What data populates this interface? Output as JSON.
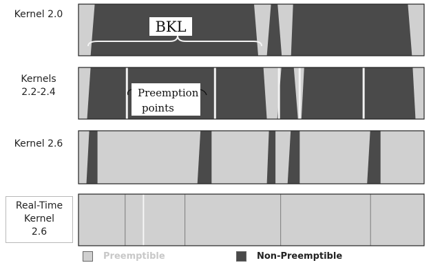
{
  "colors": {
    "preemptible": "#d0d0d0",
    "non_preemptible": "#4a4a4a",
    "outline": "#222222",
    "separator": "#f2f2f2"
  },
  "rows": [
    {
      "label": "Kernel 2.0",
      "separators": [],
      "segments": [
        {
          "type": "preemptible",
          "start": 0.0,
          "end": 0.035
        },
        {
          "type": "non",
          "start": 0.035,
          "end": 0.52,
          "taperL": 0.012,
          "taperR": 0.012
        },
        {
          "type": "preemptible",
          "start": 0.52,
          "end": 0.545
        },
        {
          "type": "non",
          "start": 0.545,
          "end": 0.588,
          "taperL": 0.012,
          "taperR": 0.012
        },
        {
          "type": "preemptible",
          "start": 0.588,
          "end": 0.615
        },
        {
          "type": "non",
          "start": 0.615,
          "end": 0.965,
          "taperL": 0.006,
          "taperR": 0.012
        },
        {
          "type": "preemptible",
          "start": 0.965,
          "end": 1.0
        }
      ]
    },
    {
      "label": "Kernels\n2.2-2.4",
      "separators": [
        0.14,
        0.395,
        0.58,
        0.64,
        0.825
      ],
      "segments": [
        {
          "type": "preemptible",
          "start": 0.0,
          "end": 0.025
        },
        {
          "type": "non",
          "start": 0.025,
          "end": 0.545,
          "taperL": 0.01,
          "taperR": 0.01
        },
        {
          "type": "preemptible",
          "start": 0.545,
          "end": 0.575
        },
        {
          "type": "non",
          "start": 0.575,
          "end": 0.635,
          "taperL": 0.012,
          "taperR": 0.012
        },
        {
          "type": "preemptible",
          "start": 0.635,
          "end": 0.645
        },
        {
          "type": "non",
          "start": 0.645,
          "end": 0.975,
          "taperL": 0.008,
          "taperR": 0.008
        },
        {
          "type": "preemptible",
          "start": 0.975,
          "end": 1.0
        }
      ]
    },
    {
      "label": "Kernel 2.6",
      "separators": [],
      "segments": [
        {
          "type": "preemptible",
          "start": 0.0,
          "end": 1.0
        },
        {
          "type": "non",
          "start": 0.023,
          "end": 0.055,
          "taperL": 0.008,
          "taperR": 0.0
        },
        {
          "type": "non",
          "start": 0.344,
          "end": 0.385,
          "taperL": 0.009,
          "taperR": 0.0
        },
        {
          "type": "non",
          "start": 0.545,
          "end": 0.57,
          "taperL": 0.006,
          "taperR": 0.0
        },
        {
          "type": "non",
          "start": 0.605,
          "end": 0.64,
          "taperL": 0.009,
          "taperR": 0.0
        },
        {
          "type": "non",
          "start": 0.835,
          "end": 0.874,
          "taperL": 0.009,
          "taperR": 0.0
        }
      ]
    },
    {
      "label": "Real-Time\nKernel\n2.6",
      "separators_dark": [
        0.135,
        0.308,
        0.585,
        0.845
      ],
      "separators_light": [
        0.188
      ],
      "segments": [
        {
          "type": "preemptible",
          "start": 0.0,
          "end": 1.0
        }
      ]
    }
  ],
  "annotations": {
    "bkl": "BKL",
    "preemption_points": [
      "Preemption",
      "points"
    ]
  },
  "legend": {
    "preemptible": "Preemptible",
    "non_preemptible": "Non-Preemptible"
  }
}
